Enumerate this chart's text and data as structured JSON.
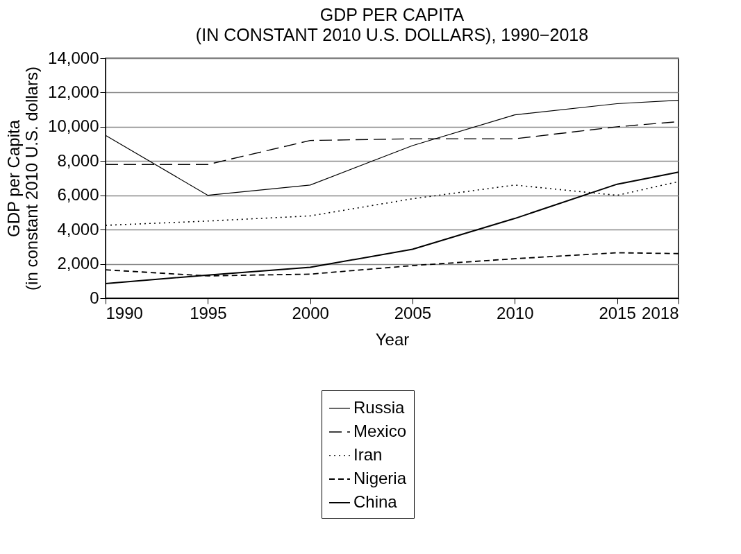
{
  "chart_data": {
    "type": "line",
    "title": "GDP PER CAPITA",
    "subtitle": "(IN CONSTANT 2010 U.S. DOLLARS), 1990−2018",
    "xlabel": "Year",
    "ylabel": "GDP per Capita\n(in constant 2010 U.S. dollars)",
    "x": [
      1990,
      1995,
      2000,
      2005,
      2010,
      2015,
      2018
    ],
    "series": [
      {
        "name": "Russia",
        "color": "#000000",
        "line_style": "solid",
        "values": [
          9500,
          6000,
          6600,
          8900,
          10700,
          11350,
          11550
        ]
      },
      {
        "name": "Mexico",
        "color": "#000000",
        "line_style": "dashed",
        "values": [
          7800,
          7800,
          9200,
          9300,
          9300,
          10000,
          10300
        ]
      },
      {
        "name": "Iran",
        "color": "#000000",
        "line_style": "dotted",
        "values": [
          4250,
          4500,
          4800,
          5800,
          6600,
          6000,
          6800
        ]
      },
      {
        "name": "Nigeria",
        "color": "#000000",
        "line_style": "dashed",
        "values": [
          1650,
          1300,
          1400,
          1900,
          2300,
          2650,
          2600
        ]
      },
      {
        "name": "China",
        "color": "#000000",
        "line_style": "solid",
        "values": [
          850,
          1350,
          1800,
          2850,
          4650,
          6650,
          7350
        ]
      }
    ],
    "xlim": [
      1990,
      2018
    ],
    "xticks": [
      1990,
      1995,
      2000,
      2005,
      2010,
      2015,
      2018
    ],
    "ylim": [
      0,
      14000
    ],
    "yticks": [
      0,
      {
        "value": 2000,
        "label": "2,000"
      },
      {
        "value": 4000,
        "label": "4,000"
      },
      {
        "value": 6000,
        "label": "6,000"
      },
      {
        "value": 8000,
        "label": "8,000"
      },
      {
        "value": 10000,
        "label": "10,000"
      },
      {
        "value": 12000,
        "label": "12,000"
      },
      {
        "value": 14000,
        "label": "14,000"
      }
    ],
    "grid": "y",
    "legend": "bottom",
    "marker": "none"
  }
}
